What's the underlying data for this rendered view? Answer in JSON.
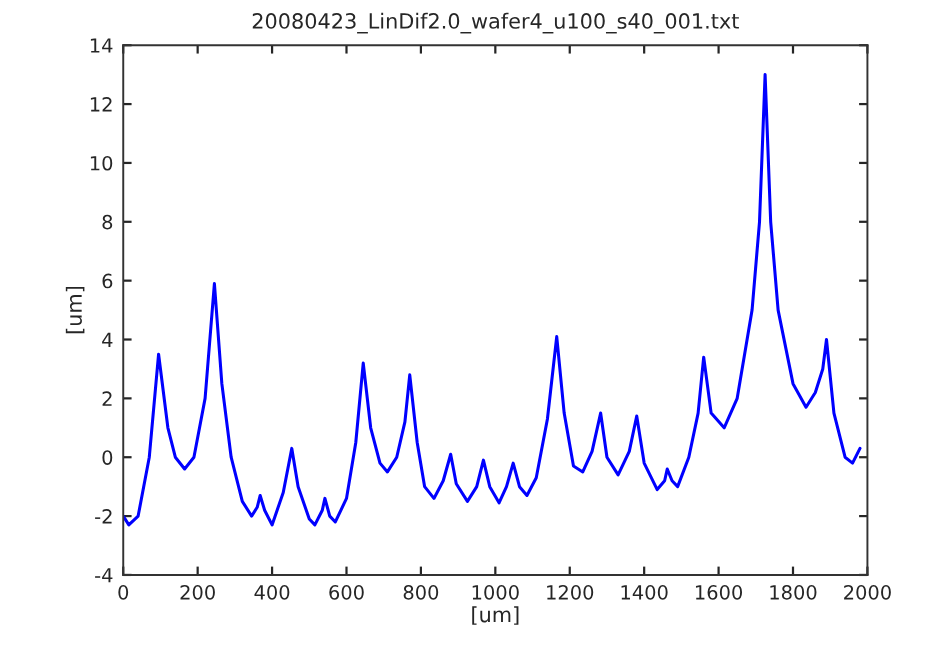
{
  "chart_data": {
    "type": "line",
    "title": "20080423_LinDif2.0_wafer4_u100_s40_001.txt",
    "xlabel": "[um]",
    "ylabel": "[um]",
    "xlim": [
      0,
      2000
    ],
    "xticks": [
      0,
      200,
      400,
      600,
      800,
      1000,
      1200,
      1400,
      1600,
      1800,
      2000
    ],
    "ylim": [
      -4,
      14
    ],
    "yticks": [
      -4,
      -2,
      0,
      2,
      4,
      6,
      8,
      10,
      12,
      14
    ],
    "grid": false,
    "marker": "none",
    "line_style": "solid",
    "series": [
      {
        "color": "#0000ff",
        "x": [
          0,
          15,
          40,
          70,
          95,
          120,
          140,
          165,
          190,
          220,
          245,
          265,
          290,
          320,
          345,
          360,
          368,
          380,
          400,
          430,
          453,
          470,
          500,
          515,
          535,
          542,
          555,
          570,
          600,
          625,
          645,
          665,
          690,
          710,
          735,
          757,
          770,
          790,
          810,
          835,
          860,
          880,
          895,
          925,
          950,
          968,
          985,
          1010,
          1030,
          1048,
          1065,
          1085,
          1110,
          1140,
          1165,
          1185,
          1210,
          1235,
          1260,
          1283,
          1300,
          1330,
          1360,
          1380,
          1400,
          1435,
          1455,
          1462,
          1475,
          1490,
          1520,
          1545,
          1560,
          1580,
          1615,
          1650,
          1690,
          1710,
          1725,
          1740,
          1760,
          1800,
          1835,
          1860,
          1880,
          1890,
          1910,
          1940,
          1960,
          1980
        ],
        "values": [
          -2.0,
          -2.3,
          -2.0,
          0,
          3.5,
          1.0,
          0,
          -0.4,
          0,
          2.0,
          5.9,
          2.5,
          0,
          -1.5,
          -2.0,
          -1.7,
          -1.3,
          -1.8,
          -2.3,
          -1.2,
          0.3,
          -1.0,
          -2.1,
          -2.3,
          -1.8,
          -1.4,
          -2.0,
          -2.2,
          -1.4,
          0.5,
          3.2,
          1.0,
          -0.2,
          -0.5,
          0,
          1.2,
          2.8,
          0.5,
          -1.0,
          -1.4,
          -0.8,
          0.1,
          -0.9,
          -1.5,
          -1.0,
          -0.1,
          -1.0,
          -1.55,
          -1.0,
          -0.2,
          -1.0,
          -1.3,
          -0.7,
          1.3,
          4.1,
          1.5,
          -0.3,
          -0.5,
          0.2,
          1.5,
          0,
          -0.6,
          0.2,
          1.4,
          -0.2,
          -1.1,
          -0.8,
          -0.4,
          -0.8,
          -1.0,
          0,
          1.5,
          3.4,
          1.5,
          1.0,
          2.0,
          5.0,
          8.0,
          13.0,
          8.0,
          5.0,
          2.5,
          1.7,
          2.2,
          3.0,
          4.0,
          1.5,
          0,
          -0.2,
          0.3
        ]
      }
    ]
  }
}
